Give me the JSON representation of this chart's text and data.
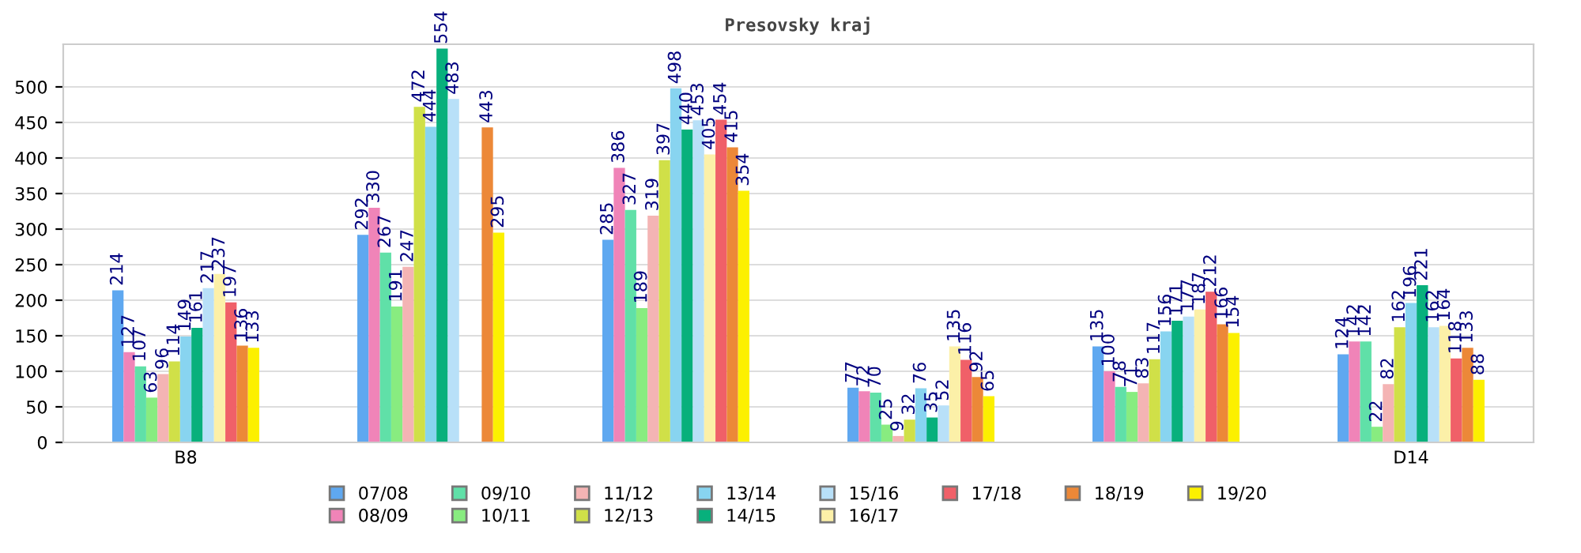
{
  "chart_data": {
    "type": "bar",
    "title": "Presovsky kraj",
    "categories": [
      "B8",
      null,
      null,
      null,
      null,
      "D14"
    ],
    "ylim": [
      0,
      560
    ],
    "yticks": [
      0,
      50,
      100,
      150,
      200,
      250,
      300,
      350,
      400,
      450,
      500
    ],
    "grid": "y",
    "legend": "bottom",
    "data_labels": true,
    "series": [
      {
        "name": "07/08",
        "color": "#5fa8f0",
        "values": [
          214,
          292,
          285,
          77,
          135,
          124
        ]
      },
      {
        "name": "08/09",
        "color": "#f084b8",
        "values": [
          127,
          330,
          386,
          72,
          100,
          142
        ]
      },
      {
        "name": "09/10",
        "color": "#60e0a8",
        "values": [
          107,
          267,
          327,
          70,
          78,
          142
        ]
      },
      {
        "name": "10/11",
        "color": "#88ec80",
        "values": [
          63,
          191,
          189,
          25,
          71,
          22
        ]
      },
      {
        "name": "11/12",
        "color": "#f4b4b4",
        "values": [
          96,
          247,
          319,
          9,
          83,
          82
        ]
      },
      {
        "name": "12/13",
        "color": "#d0e048",
        "values": [
          114,
          472,
          397,
          32,
          117,
          162
        ]
      },
      {
        "name": "13/14",
        "color": "#88d4f0",
        "values": [
          149,
          444,
          498,
          76,
          156,
          196
        ]
      },
      {
        "name": "14/15",
        "color": "#08b07c",
        "values": [
          161,
          554,
          440,
          35,
          171,
          221
        ]
      },
      {
        "name": "15/16",
        "color": "#b8e0f8",
        "values": [
          217,
          483,
          453,
          52,
          177,
          162
        ]
      },
      {
        "name": "16/17",
        "color": "#fcf0a8",
        "values": [
          237,
          null,
          405,
          135,
          187,
          164
        ]
      },
      {
        "name": "17/18",
        "color": "#f06068",
        "values": [
          197,
          null,
          454,
          116,
          212,
          118
        ]
      },
      {
        "name": "18/19",
        "color": "#ec8838",
        "values": [
          136,
          443,
          415,
          92,
          166,
          133
        ]
      },
      {
        "name": "19/20",
        "color": "#fcf000",
        "values": [
          133,
          295,
          354,
          65,
          154,
          88
        ]
      }
    ]
  }
}
